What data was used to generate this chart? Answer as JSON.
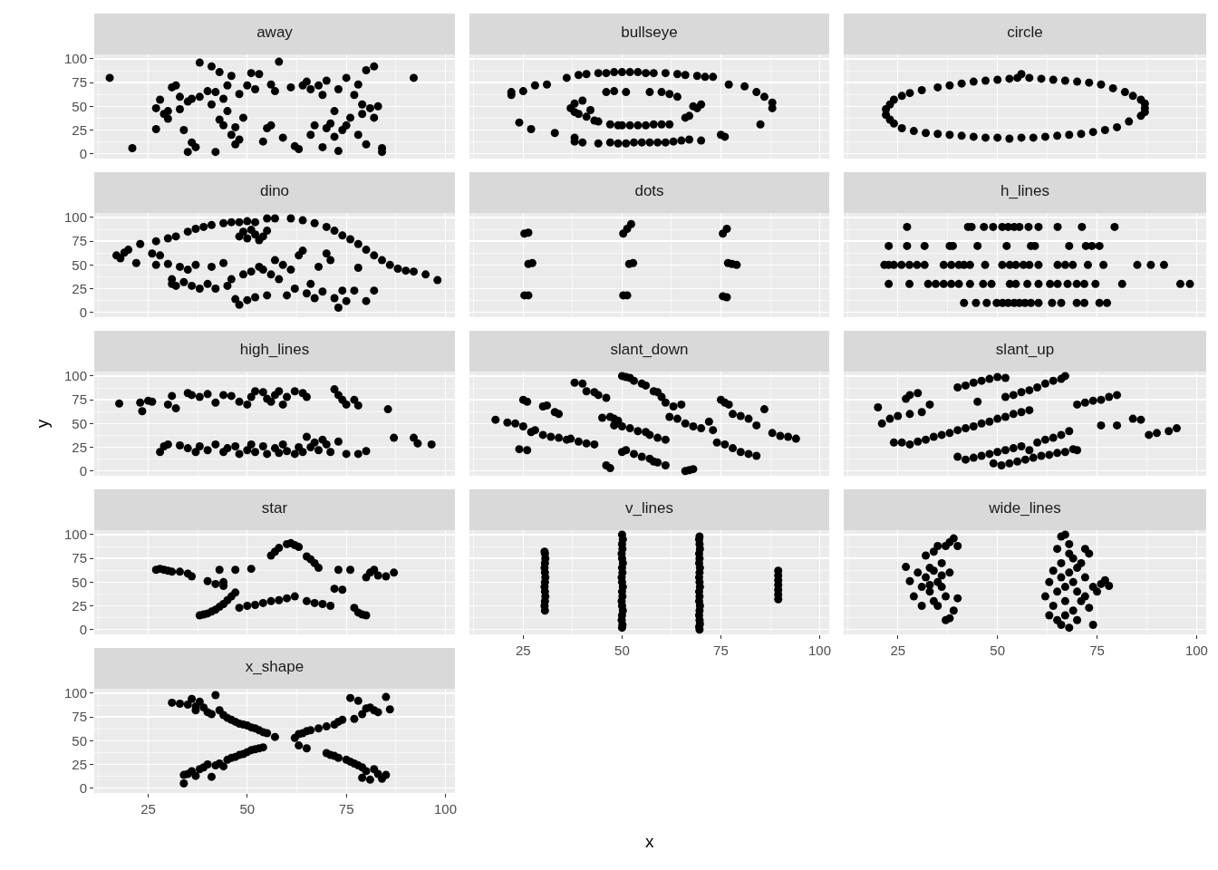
{
  "chart_data": [
    {
      "type": "scatter",
      "title": "away",
      "color": "#000000",
      "marker": "circle",
      "grid": true,
      "tick_labels": "y",
      "xlim": [
        11.4,
        102.4
      ],
      "ylim": [
        -5,
        104.7
      ],
      "xticks": [
        25,
        50,
        75,
        100
      ],
      "yticks": [
        0,
        25,
        50,
        75,
        100
      ],
      "x": [
        15.3,
        21,
        27,
        27,
        28,
        29,
        30,
        30,
        31,
        32,
        33,
        33,
        34,
        35,
        35,
        36,
        36,
        37,
        38,
        38,
        40,
        41,
        41,
        42,
        42,
        43,
        43,
        44,
        44,
        45,
        45,
        46,
        46,
        47,
        47,
        48,
        48,
        49,
        50,
        51,
        52,
        53,
        54,
        55,
        56,
        56,
        57,
        58,
        59,
        61,
        62,
        63,
        64,
        65,
        66,
        66,
        67,
        68,
        69,
        69,
        70,
        70,
        71,
        72,
        72,
        73,
        73,
        74,
        75,
        75,
        76,
        77,
        78,
        78,
        79,
        79,
        80,
        80,
        81,
        82,
        82,
        83,
        84,
        84,
        92
      ],
      "values": [
        80,
        6,
        26,
        48,
        57,
        42,
        45,
        37,
        70,
        72,
        47,
        60,
        25,
        2,
        55,
        12,
        58,
        7,
        96,
        60,
        66,
        52,
        92,
        65,
        2,
        36,
        86,
        58,
        30,
        72,
        45,
        20,
        82,
        10,
        28,
        15,
        63,
        38,
        72,
        85,
        68,
        84,
        13,
        27,
        73,
        30,
        66,
        97,
        17,
        70,
        8,
        5,
        72,
        76,
        20,
        68,
        30,
        72,
        62,
        7,
        27,
        77,
        32,
        45,
        18,
        68,
        3,
        25,
        80,
        30,
        38,
        62,
        20,
        73,
        42,
        52,
        88,
        10,
        48,
        92,
        38,
        50,
        6,
        2,
        80
      ]
    },
    {
      "type": "scatter",
      "title": "bullseye",
      "color": "#000000",
      "marker": "circle",
      "grid": true,
      "tick_labels": false,
      "xlim": [
        11.4,
        102.4
      ],
      "ylim": [
        -5,
        104.7
      ],
      "xticks": [
        25,
        50,
        75,
        100
      ],
      "yticks": [
        0,
        25,
        50,
        75,
        100
      ],
      "x": [
        22,
        22,
        24,
        25,
        27,
        28,
        31,
        33,
        36,
        38,
        39,
        41,
        44,
        46,
        48,
        50,
        52,
        54,
        56,
        58,
        61,
        64,
        66,
        69,
        71,
        73,
        77,
        81,
        84,
        86,
        88,
        88,
        85,
        38,
        40,
        44,
        47,
        49,
        51,
        53,
        55,
        57,
        59,
        61,
        63,
        65,
        67,
        70,
        75,
        76,
        37,
        38,
        38,
        39,
        40,
        41,
        42,
        43,
        44,
        46,
        47,
        49,
        50,
        52,
        54,
        56,
        58,
        60,
        62,
        66,
        67,
        68,
        69,
        70,
        64,
        62,
        60,
        57,
        51,
        48
      ],
      "values": [
        62,
        65,
        33,
        66,
        26,
        72,
        73,
        22,
        80,
        17,
        83,
        84,
        85,
        85,
        86,
        86,
        86,
        86,
        85,
        85,
        85,
        84,
        83,
        82,
        81,
        81,
        73,
        71,
        65,
        60,
        54,
        48,
        31,
        13,
        12,
        11,
        12,
        11,
        11,
        12,
        12,
        12,
        12,
        12,
        13,
        14,
        15,
        14,
        20,
        18,
        48,
        53,
        44,
        42,
        56,
        39,
        46,
        35,
        34,
        65,
        31,
        30,
        30,
        30,
        30,
        30,
        31,
        31,
        31,
        38,
        40,
        50,
        48,
        52,
        60,
        63,
        65,
        65,
        65,
        66
      ]
    },
    {
      "type": "scatter",
      "title": "circle",
      "color": "#000000",
      "marker": "circle",
      "grid": true,
      "tick_labels": false,
      "xlim": [
        11.4,
        102.4
      ],
      "ylim": [
        -5,
        104.7
      ],
      "xticks": [
        25,
        50,
        75,
        100
      ],
      "yticks": [
        0,
        25,
        50,
        75,
        100
      ],
      "x": [
        22,
        23,
        24,
        26,
        28,
        31,
        35,
        38,
        41,
        44,
        47,
        50,
        53,
        55,
        56,
        58,
        61,
        64,
        67,
        70,
        73,
        76,
        79,
        82,
        84,
        86,
        87,
        87,
        87,
        86,
        83,
        80,
        77,
        74,
        71,
        68,
        65,
        62,
        59,
        56,
        53,
        50,
        47,
        44,
        41,
        38,
        35,
        32,
        29,
        26,
        24,
        23,
        22
      ],
      "values": [
        47,
        52,
        57,
        61,
        64,
        67,
        70,
        72,
        74,
        76,
        77,
        78,
        79,
        80,
        84,
        80,
        79,
        78,
        77,
        76,
        75,
        73,
        69,
        65,
        61,
        57,
        53,
        48,
        44,
        40,
        34,
        28,
        25,
        23,
        21,
        20,
        19,
        18,
        17,
        17,
        16,
        17,
        17,
        18,
        19,
        20,
        21,
        22,
        24,
        27,
        32,
        36,
        41
      ]
    },
    {
      "type": "scatter",
      "title": "dino",
      "color": "#000000",
      "marker": "circle",
      "grid": true,
      "tick_labels": "y",
      "xlim": [
        11.4,
        102.4
      ],
      "ylim": [
        -5,
        104.7
      ],
      "xticks": [
        25,
        50,
        75,
        100
      ],
      "yticks": [
        0,
        25,
        50,
        75,
        100
      ],
      "x": [
        17,
        18,
        19,
        20,
        22,
        23,
        27,
        30,
        32,
        35,
        37,
        39,
        41,
        44,
        46,
        48,
        50,
        52,
        55,
        57,
        61,
        64,
        67,
        70,
        72,
        74,
        76,
        78,
        80,
        82,
        84,
        86,
        88,
        90,
        92,
        95,
        98,
        48,
        49,
        50,
        51,
        52,
        54,
        55,
        53,
        26,
        27,
        28,
        30,
        31,
        31,
        32,
        33,
        34,
        35,
        36,
        37,
        38,
        40,
        41,
        42,
        44,
        45,
        46,
        47,
        48,
        49,
        50,
        51,
        52,
        53,
        54,
        55,
        56,
        57,
        58,
        59,
        60,
        61,
        62,
        63,
        64,
        65,
        66,
        67,
        68,
        69,
        70,
        71,
        72,
        73,
        74,
        75,
        77,
        78,
        80,
        82
      ],
      "values": [
        60,
        57,
        63,
        66,
        52,
        72,
        75,
        78,
        80,
        85,
        88,
        90,
        92,
        94,
        95,
        95,
        96,
        95,
        99,
        99,
        99,
        97,
        94,
        90,
        86,
        81,
        77,
        72,
        66,
        60,
        55,
        50,
        46,
        44,
        43,
        40,
        34,
        80,
        85,
        78,
        87,
        82,
        80,
        86,
        76,
        62,
        50,
        60,
        51,
        35,
        30,
        28,
        48,
        32,
        45,
        28,
        50,
        25,
        30,
        48,
        25,
        52,
        28,
        35,
        14,
        8,
        40,
        13,
        43,
        16,
        48,
        45,
        18,
        40,
        55,
        35,
        50,
        18,
        45,
        25,
        60,
        65,
        20,
        30,
        15,
        48,
        22,
        62,
        55,
        15,
        5,
        23,
        12,
        23,
        47,
        12,
        23
      ]
    },
    {
      "type": "scatter",
      "title": "dots",
      "color": "#000000",
      "marker": "circle",
      "grid": true,
      "tick_labels": false,
      "xlim": [
        11.4,
        102.4
      ],
      "ylim": [
        -5,
        104.7
      ],
      "xticks": [
        25,
        50,
        75,
        100
      ],
      "yticks": [
        0,
        25,
        50,
        75,
        100
      ],
      "x": [
        25.3,
        26.3,
        26.3,
        27.3,
        25.3,
        26.3,
        50.3,
        51.3,
        52.3,
        51.8,
        52.8,
        50.3,
        51.3,
        75.5,
        76.5,
        76.8,
        77.8,
        79,
        75.5,
        76.5
      ],
      "values": [
        83,
        84,
        51,
        52,
        18,
        18,
        83,
        88,
        93,
        51,
        52,
        18,
        18,
        83,
        88,
        52,
        51,
        50,
        17,
        16
      ]
    },
    {
      "type": "scatter",
      "title": "h_lines",
      "color": "#000000",
      "marker": "circle",
      "grid": true,
      "tick_labels": false,
      "xlim": [
        11.4,
        102.4
      ],
      "ylim": [
        -5,
        104.7
      ],
      "xticks": [
        25,
        50,
        75,
        100
      ],
      "yticks": [
        0,
        25,
        50,
        75,
        100
      ],
      "x": [
        27.3,
        42.6,
        43.5,
        46.6,
        48.9,
        51.2,
        52.7,
        54.2,
        55.5,
        57.8,
        60.3,
        65.1,
        71.2,
        79.4,
        22.7,
        27.3,
        31.7,
        38,
        38.8,
        45,
        52.3,
        58.4,
        59.4,
        68,
        72.2,
        73.7,
        75.6,
        21.6,
        22.7,
        24,
        25.9,
        27.9,
        29.8,
        31.7,
        36.5,
        38.4,
        40.3,
        41.6,
        43.1,
        46.9,
        51.2,
        53.1,
        54.6,
        56.5,
        58,
        60.3,
        65.1,
        67,
        68.9,
        72.7,
        76.6,
        85.1,
        88.5,
        91.8,
        22.7,
        27.9,
        32.6,
        34.5,
        36.5,
        38.4,
        40.3,
        43.1,
        46.4,
        48.5,
        53.1,
        54.6,
        57.5,
        60.3,
        63.2,
        65.1,
        67.6,
        69.9,
        71.8,
        74.6,
        81.3,
        95.9,
        98.3,
        41.6,
        44.6,
        47.3,
        49.8,
        51.3,
        52.7,
        54.2,
        55.5,
        56.9,
        58.4,
        60.3,
        63.7,
        66,
        69.9,
        71.8,
        75.6,
        77.5
      ],
      "values": [
        90,
        90,
        90,
        90,
        90,
        90,
        90,
        90,
        90,
        90,
        90,
        90,
        90,
        90,
        70,
        70,
        70,
        70,
        70,
        70,
        70,
        70,
        70,
        70,
        70,
        70,
        70,
        50,
        50,
        50,
        50,
        50,
        50,
        50,
        50,
        50,
        50,
        50,
        50,
        50,
        50,
        50,
        50,
        50,
        50,
        50,
        50,
        50,
        50,
        50,
        50,
        50,
        50,
        50,
        30,
        30,
        30,
        30,
        30,
        30,
        30,
        30,
        30,
        30,
        30,
        30,
        30,
        30,
        30,
        30,
        30,
        30,
        30,
        30,
        30,
        30,
        30,
        10,
        10,
        10,
        10,
        10,
        10,
        10,
        10,
        10,
        10,
        10,
        10,
        10,
        10,
        10,
        10,
        10
      ]
    },
    {
      "type": "scatter",
      "title": "high_lines",
      "ylabel": "y",
      "color": "#000000",
      "marker": "circle",
      "grid": true,
      "tick_labels": "y",
      "xlim": [
        11.4,
        102.4
      ],
      "ylim": [
        -5,
        104.7
      ],
      "xticks": [
        25,
        50,
        75,
        100
      ],
      "yticks": [
        0,
        25,
        50,
        75,
        100
      ],
      "x": [
        17.7,
        23,
        23.5,
        25,
        26,
        30,
        31,
        32,
        35,
        36,
        38,
        40,
        42,
        44,
        46,
        48,
        50,
        51,
        52,
        54,
        55,
        56,
        57,
        58,
        59,
        60,
        62,
        64,
        65,
        72,
        73,
        74,
        75,
        77,
        78,
        85.5,
        28,
        29,
        30,
        33,
        35,
        37,
        38,
        40,
        42,
        44,
        45,
        47,
        48,
        50,
        51,
        52,
        54,
        55,
        57,
        58,
        59,
        60,
        62,
        63,
        64,
        65,
        66,
        67,
        68,
        69,
        70,
        71,
        73,
        75,
        78,
        80,
        87,
        92,
        93,
        96.5
      ],
      "values": [
        71,
        72,
        63,
        74,
        73,
        70,
        79,
        66,
        82,
        80,
        78,
        81,
        72,
        80,
        79,
        73,
        70,
        78,
        84,
        83,
        76,
        73,
        80,
        84,
        70,
        78,
        84,
        82,
        78,
        86,
        80,
        75,
        70,
        75,
        69,
        65,
        20,
        26,
        28,
        27,
        24,
        20,
        26,
        22,
        28,
        20,
        24,
        26,
        18,
        22,
        28,
        20,
        26,
        18,
        24,
        19,
        28,
        21,
        18,
        25,
        20,
        36,
        25,
        30,
        22,
        33,
        28,
        20,
        31,
        18,
        18,
        21,
        35,
        35,
        29,
        28
      ]
    },
    {
      "type": "scatter",
      "title": "slant_down",
      "color": "#000000",
      "marker": "circle",
      "grid": true,
      "tick_labels": false,
      "xlim": [
        11.4,
        102.4
      ],
      "ylim": [
        -5,
        104.7
      ],
      "xticks": [
        25,
        50,
        75,
        100
      ],
      "yticks": [
        0,
        25,
        50,
        75,
        100
      ],
      "x": [
        18,
        21,
        23,
        25,
        27,
        28,
        30,
        32,
        34,
        36,
        37,
        39,
        41,
        43,
        25,
        26,
        30,
        31,
        33,
        34,
        38,
        40,
        41,
        43,
        44,
        46,
        45,
        47,
        48,
        49,
        50,
        51,
        52,
        53,
        55,
        56,
        58,
        59,
        48,
        50,
        52,
        54,
        56,
        57,
        59,
        61,
        50,
        51,
        53,
        55,
        57,
        58,
        59,
        61,
        46,
        47,
        62,
        64,
        66,
        68,
        70,
        72,
        73,
        74,
        76,
        78,
        80,
        82,
        84,
        63,
        65,
        60,
        61,
        75,
        76,
        77,
        78,
        80,
        82,
        84,
        86,
        88,
        90,
        92,
        94,
        66,
        67,
        68,
        24,
        26
      ],
      "values": [
        54,
        51,
        50,
        47,
        41,
        43,
        38,
        36,
        35,
        33,
        34,
        31,
        29,
        28,
        75,
        73,
        68,
        69,
        62,
        60,
        93,
        92,
        84,
        83,
        80,
        77,
        56,
        57,
        55,
        53,
        100,
        99,
        98,
        95,
        92,
        90,
        84,
        83,
        48,
        47,
        45,
        42,
        41,
        38,
        35,
        33,
        20,
        22,
        18,
        15,
        13,
        10,
        9,
        6,
        6,
        3,
        57,
        55,
        50,
        47,
        45,
        52,
        43,
        30,
        28,
        24,
        20,
        18,
        16,
        68,
        70,
        78,
        72,
        75,
        72,
        70,
        60,
        58,
        55,
        48,
        65,
        40,
        37,
        36,
        34,
        0,
        1,
        2,
        23,
        22
      ]
    },
    {
      "type": "scatter",
      "title": "slant_up",
      "color": "#000000",
      "marker": "circle",
      "grid": true,
      "tick_labels": false,
      "xlim": [
        11.4,
        102.4
      ],
      "ylim": [
        -5,
        104.7
      ],
      "xticks": [
        25,
        50,
        75,
        100
      ],
      "yticks": [
        0,
        25,
        50,
        75,
        100
      ],
      "x": [
        20,
        21,
        23,
        25,
        27,
        28,
        30,
        28,
        31,
        33,
        24,
        26,
        28,
        30,
        32,
        34,
        36,
        38,
        40,
        42,
        44,
        46,
        48,
        50,
        52,
        54,
        56,
        58,
        40,
        42,
        44,
        46,
        48,
        50,
        52,
        45,
        52,
        54,
        56,
        58,
        60,
        62,
        64,
        66,
        67,
        40,
        42,
        44,
        46,
        48,
        50,
        52,
        54,
        56,
        58,
        49,
        51,
        53,
        55,
        57,
        59,
        61,
        63,
        65,
        67,
        69,
        60,
        62,
        64,
        66,
        68,
        70,
        72,
        74,
        76,
        78,
        80,
        70,
        76,
        80,
        84,
        86,
        88,
        90,
        93,
        95
      ],
      "values": [
        67,
        50,
        55,
        58,
        76,
        80,
        82,
        60,
        62,
        70,
        30,
        30,
        28,
        31,
        33,
        36,
        38,
        40,
        43,
        45,
        47,
        50,
        52,
        55,
        57,
        60,
        62,
        64,
        88,
        90,
        93,
        95,
        97,
        99,
        98,
        73,
        78,
        80,
        83,
        85,
        88,
        92,
        95,
        97,
        100,
        15,
        12,
        14,
        16,
        18,
        20,
        22,
        24,
        26,
        22,
        8,
        6,
        8,
        10,
        12,
        14,
        16,
        17,
        19,
        20,
        23,
        30,
        33,
        35,
        38,
        42,
        70,
        72,
        74,
        75,
        78,
        80,
        22,
        48,
        48,
        55,
        54,
        38,
        40,
        42,
        45
      ]
    },
    {
      "type": "scatter",
      "title": "star",
      "color": "#000000",
      "marker": "circle",
      "grid": true,
      "tick_labels": "y",
      "xlim": [
        11.4,
        102.4
      ],
      "ylim": [
        -5,
        104.7
      ],
      "xticks": [
        25,
        50,
        75,
        100
      ],
      "yticks": [
        0,
        25,
        50,
        75,
        100
      ],
      "x": [
        27,
        28,
        29,
        30,
        31,
        33,
        35,
        36,
        40,
        42,
        44,
        43,
        44,
        47,
        38,
        39,
        40,
        41,
        42,
        43,
        44,
        45,
        46,
        47,
        48,
        50,
        52,
        54,
        56,
        58,
        60,
        62,
        51,
        56,
        57,
        58,
        60,
        61,
        62,
        63,
        65,
        66,
        67,
        68,
        65,
        67,
        69,
        71,
        72,
        74,
        73,
        76,
        77,
        78,
        79,
        80,
        80,
        81,
        82,
        83,
        85,
        87
      ],
      "values": [
        63,
        64,
        63,
        62,
        61,
        61,
        59,
        56,
        51,
        48,
        46,
        63,
        50,
        63,
        15,
        16,
        17,
        19,
        21,
        24,
        27,
        31,
        35,
        39,
        23,
        25,
        26,
        28,
        30,
        31,
        33,
        35,
        64,
        78,
        82,
        86,
        90,
        91,
        89,
        87,
        77,
        74,
        70,
        65,
        30,
        28,
        27,
        25,
        43,
        42,
        63,
        63,
        23,
        18,
        16,
        15,
        55,
        60,
        63,
        57,
        56,
        60
      ]
    },
    {
      "type": "scatter",
      "title": "v_lines",
      "xlabel": "x",
      "color": "#000000",
      "marker": "circle",
      "grid": true,
      "tick_labels": "x",
      "xlim": [
        11.4,
        102.4
      ],
      "ylim": [
        -5,
        104.7
      ],
      "xticks": [
        25,
        50,
        75,
        100
      ],
      "yticks": [
        0,
        25,
        50,
        75,
        100
      ],
      "x": [
        30.5,
        30.4,
        30.5,
        30.6,
        30.5,
        30.4,
        30.5,
        30.6,
        30.5,
        30.4,
        30.5,
        30.6,
        30.5,
        30.4,
        50,
        50.1,
        49.9,
        50,
        50.2,
        50,
        49.9,
        50.1,
        50,
        50.2,
        50,
        49.9,
        50.1,
        50,
        50.2,
        50,
        49.9,
        50.1,
        50,
        50.2,
        50,
        69.6,
        69.5,
        69.7,
        69.6,
        69.5,
        69.6,
        69.7,
        69.5,
        69.6,
        69.5,
        69.7,
        69.6,
        69.5,
        69.6,
        69.7,
        69.5,
        69.6,
        69.5,
        69.7,
        69.6,
        69.5,
        69.6,
        89.5,
        89.5,
        89.5,
        89.5,
        89.5,
        89.5,
        89.5
      ],
      "values": [
        20,
        25,
        30,
        35,
        40,
        45,
        50,
        55,
        60,
        65,
        70,
        75,
        80,
        82,
        2,
        5,
        10,
        15,
        20,
        25,
        30,
        35,
        40,
        45,
        50,
        55,
        60,
        65,
        70,
        75,
        80,
        85,
        90,
        95,
        100,
        0,
        3,
        6,
        10,
        15,
        20,
        25,
        30,
        35,
        40,
        45,
        50,
        55,
        60,
        65,
        70,
        75,
        80,
        85,
        90,
        95,
        98,
        32,
        37,
        42,
        47,
        52,
        57,
        62
      ]
    },
    {
      "type": "scatter",
      "title": "wide_lines",
      "color": "#000000",
      "marker": "circle",
      "grid": true,
      "tick_labels": "x",
      "xlim": [
        11.4,
        102.4
      ],
      "ylim": [
        -5,
        104.7
      ],
      "xticks": [
        25,
        50,
        75,
        100
      ],
      "yticks": [
        0,
        25,
        50,
        75,
        100
      ],
      "x": [
        27,
        28,
        29,
        30,
        31,
        32,
        32,
        33,
        33,
        34,
        34,
        35,
        35,
        36,
        36,
        37,
        37,
        37,
        38,
        38,
        38,
        39,
        39,
        40,
        40,
        33,
        34,
        35,
        36,
        31,
        62,
        63,
        63,
        64,
        64,
        65,
        65,
        65,
        66,
        66,
        66,
        66,
        67,
        67,
        67,
        67,
        68,
        68,
        68,
        68,
        69,
        69,
        69,
        70,
        70,
        70,
        71,
        72,
        72,
        73,
        73,
        74,
        74,
        75,
        76,
        77,
        78,
        71,
        72
      ],
      "values": [
        66,
        51,
        35,
        60,
        25,
        55,
        78,
        40,
        65,
        82,
        30,
        88,
        50,
        45,
        70,
        88,
        35,
        10,
        92,
        60,
        12,
        96,
        20,
        88,
        33,
        47,
        62,
        25,
        57,
        45,
        35,
        15,
        50,
        62,
        25,
        85,
        40,
        10,
        98,
        70,
        55,
        5,
        100,
        45,
        30,
        15,
        90,
        80,
        60,
        2,
        75,
        50,
        20,
        65,
        40,
        10,
        30,
        85,
        55,
        80,
        23,
        5,
        45,
        40,
        48,
        52,
        46,
        70,
        35
      ]
    },
    {
      "type": "scatter",
      "title": "x_shape",
      "color": "#000000",
      "marker": "circle",
      "grid": true,
      "xlim": [
        11.4,
        102.4
      ],
      "ylim": [
        -5,
        104.7
      ],
      "xticks": [
        25,
        50,
        75,
        100
      ],
      "yticks": [
        0,
        25,
        50,
        75,
        100
      ],
      "x": [
        31,
        33,
        35,
        36,
        37,
        37,
        38,
        39,
        40,
        41,
        42,
        43,
        44,
        45,
        46,
        47,
        48,
        49,
        50,
        51,
        52,
        53,
        54,
        55,
        57,
        34,
        34,
        35,
        36,
        37,
        38,
        39,
        40,
        41,
        42,
        43,
        44,
        45,
        46,
        47,
        48,
        49,
        50,
        51,
        52,
        53,
        54,
        62,
        63,
        64,
        65,
        66,
        68,
        70,
        72,
        73,
        74,
        76,
        77,
        78,
        79,
        80,
        81,
        82,
        83,
        85,
        86,
        63,
        65,
        70,
        71,
        72,
        73,
        75,
        76,
        77,
        78,
        79,
        80,
        79,
        81,
        82,
        83,
        84,
        85
      ],
      "values": [
        90,
        89,
        88,
        94,
        86,
        82,
        91,
        85,
        80,
        78,
        98,
        82,
        77,
        74,
        72,
        70,
        68,
        67,
        66,
        64,
        63,
        61,
        59,
        58,
        54,
        5,
        14,
        15,
        18,
        13,
        20,
        22,
        25,
        12,
        24,
        26,
        23,
        30,
        32,
        33,
        35,
        36,
        38,
        40,
        41,
        42,
        43,
        53,
        57,
        58,
        60,
        61,
        63,
        65,
        67,
        70,
        72,
        95,
        73,
        92,
        78,
        84,
        85,
        82,
        80,
        96,
        83,
        45,
        42,
        37,
        35,
        34,
        32,
        30,
        28,
        26,
        24,
        22,
        18,
        11,
        9,
        20,
        15,
        10,
        14
      ]
    }
  ]
}
